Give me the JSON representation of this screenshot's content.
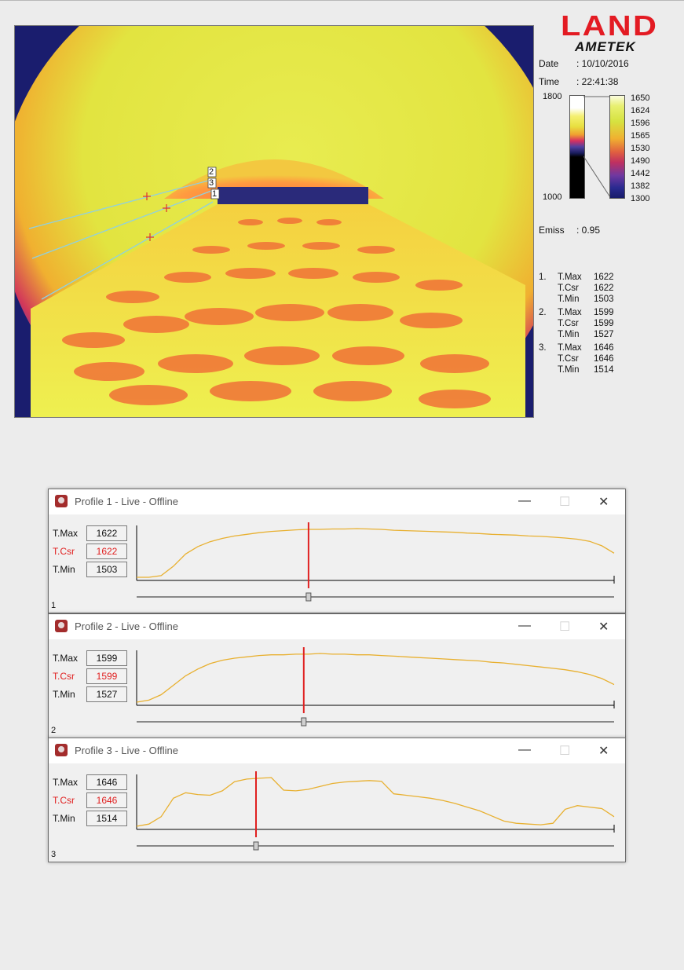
{
  "brand": {
    "name": "LAND",
    "sub": "AMETEK"
  },
  "info": {
    "date_label": "Date",
    "date_value": ": 10/10/2016",
    "time_label": "Time",
    "time_value": ": 22:41:38",
    "emiss_label": "Emiss",
    "emiss_value": ": 0.95"
  },
  "scale_left": {
    "top": "1800",
    "bottom": "1000"
  },
  "scale_right": [
    "1650",
    "1624",
    "1596",
    "1565",
    "1530",
    "1490",
    "1442",
    "1382",
    "1300"
  ],
  "line_markers": [
    "2",
    "3",
    "1"
  ],
  "measurements": [
    {
      "num": "1.",
      "rows": [
        {
          "label": "T.Max",
          "value": "1622"
        },
        {
          "label": "T.Csr",
          "value": "1622"
        },
        {
          "label": "T.Min",
          "value": "1503"
        }
      ]
    },
    {
      "num": "2.",
      "rows": [
        {
          "label": "T.Max",
          "value": "1599"
        },
        {
          "label": "T.Csr",
          "value": "1599"
        },
        {
          "label": "T.Min",
          "value": "1527"
        }
      ]
    },
    {
      "num": "3.",
      "rows": [
        {
          "label": "T.Max",
          "value": "1646"
        },
        {
          "label": "T.Csr",
          "value": "1646"
        },
        {
          "label": "T.Min",
          "value": "1514"
        }
      ]
    }
  ],
  "profiles": [
    {
      "title": "Profile 1 - Live - Offline",
      "index": "1",
      "labels": {
        "max": "T.Max",
        "csr": "T.Csr",
        "min": "T.Min"
      },
      "values": {
        "max": "1622",
        "csr": "1622",
        "min": "1503"
      }
    },
    {
      "title": "Profile 2 - Live - Offline",
      "index": "2",
      "labels": {
        "max": "T.Max",
        "csr": "T.Csr",
        "min": "T.Min"
      },
      "values": {
        "max": "1599",
        "csr": "1599",
        "min": "1527"
      }
    },
    {
      "title": "Profile 3 - Live - Offline",
      "index": "3",
      "labels": {
        "max": "T.Max",
        "csr": "T.Csr",
        "min": "T.Min"
      },
      "values": {
        "max": "1646",
        "csr": "1646",
        "min": "1514"
      }
    }
  ],
  "window_buttons": {
    "minimize": "—",
    "maximize": "☐",
    "close": "✕"
  },
  "colors": {
    "logo_red": "#e31b23",
    "cursor_red": "#e02020",
    "profile_line": "#e8b030"
  },
  "icons": [
    "profile-window-icon",
    "minimize-icon",
    "maximize-icon",
    "close-icon"
  ],
  "chart_data": [
    {
      "type": "line",
      "name": "Profile 1",
      "cursor_fraction": 0.36,
      "ylim": [
        1503,
        1622
      ],
      "values": [
        1503,
        1503,
        1507,
        1530,
        1560,
        1578,
        1590,
        1598,
        1604,
        1608,
        1612,
        1615,
        1617,
        1619,
        1620,
        1620,
        1621,
        1621,
        1622,
        1621,
        1620,
        1618,
        1617,
        1616,
        1615,
        1614,
        1613,
        1611,
        1610,
        1608,
        1607,
        1606,
        1604,
        1603,
        1601,
        1599,
        1596,
        1591,
        1580,
        1562
      ]
    },
    {
      "type": "line",
      "name": "Profile 2",
      "cursor_fraction": 0.35,
      "ylim": [
        1527,
        1599
      ],
      "values": [
        1527,
        1530,
        1538,
        1552,
        1566,
        1576,
        1584,
        1589,
        1592,
        1594,
        1596,
        1597,
        1597,
        1598,
        1598,
        1599,
        1598,
        1598,
        1597,
        1597,
        1596,
        1595,
        1594,
        1593,
        1592,
        1591,
        1590,
        1589,
        1588,
        1586,
        1585,
        1583,
        1581,
        1579,
        1577,
        1575,
        1572,
        1568,
        1562,
        1553
      ]
    },
    {
      "type": "line",
      "name": "Profile 3",
      "cursor_fraction": 0.25,
      "ylim": [
        1514,
        1646
      ],
      "values": [
        1514,
        1520,
        1540,
        1590,
        1605,
        1600,
        1598,
        1610,
        1635,
        1642,
        1644,
        1646,
        1612,
        1610,
        1614,
        1622,
        1630,
        1634,
        1636,
        1638,
        1636,
        1602,
        1598,
        1594,
        1590,
        1584,
        1576,
        1566,
        1556,
        1542,
        1528,
        1522,
        1520,
        1518,
        1522,
        1560,
        1570,
        1566,
        1562,
        1540
      ]
    }
  ]
}
